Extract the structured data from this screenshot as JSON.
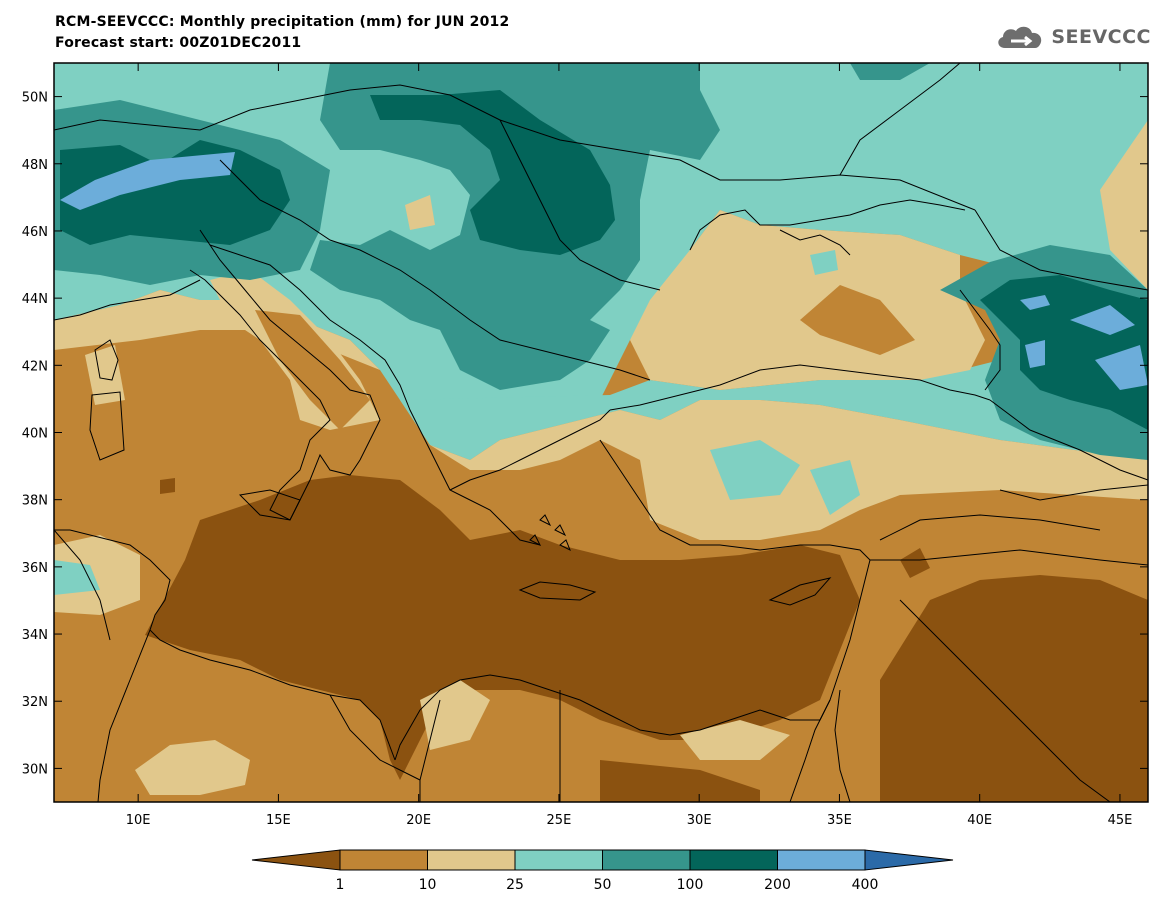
{
  "title": {
    "line1": "RCM-SEEVCCC: Monthly precipitation (mm) for JUN 2012",
    "line2": "Forecast start: 00Z01DEC2011"
  },
  "logo": {
    "text": "SEEVCCC",
    "icon": "cloud-icon"
  },
  "map": {
    "lon_range": [
      7,
      46
    ],
    "lat_range": [
      29,
      51
    ],
    "lon_ticks": [
      {
        "value": 10,
        "label": "10E"
      },
      {
        "value": 15,
        "label": "15E"
      },
      {
        "value": 20,
        "label": "20E"
      },
      {
        "value": 25,
        "label": "25E"
      },
      {
        "value": 30,
        "label": "30E"
      },
      {
        "value": 35,
        "label": "35E"
      },
      {
        "value": 40,
        "label": "40E"
      },
      {
        "value": 45,
        "label": "45E"
      }
    ],
    "lat_ticks": [
      {
        "value": 50,
        "label": "50N"
      },
      {
        "value": 48,
        "label": "48N"
      },
      {
        "value": 46,
        "label": "46N"
      },
      {
        "value": 44,
        "label": "44N"
      },
      {
        "value": 42,
        "label": "42N"
      },
      {
        "value": 40,
        "label": "40N"
      },
      {
        "value": 38,
        "label": "38N"
      },
      {
        "value": 36,
        "label": "36N"
      },
      {
        "value": 34,
        "label": "34N"
      },
      {
        "value": 32,
        "label": "32N"
      },
      {
        "value": 30,
        "label": "30N"
      }
    ]
  },
  "colorbar": {
    "colors": [
      "#8b5210",
      "#c08535",
      "#e1c88c",
      "#7fd0c2",
      "#36958c",
      "#03655a",
      "#6cadda",
      "#2b6aa8"
    ],
    "levels": [
      "1",
      "10",
      "25",
      "50",
      "100",
      "200",
      "400"
    ]
  }
}
